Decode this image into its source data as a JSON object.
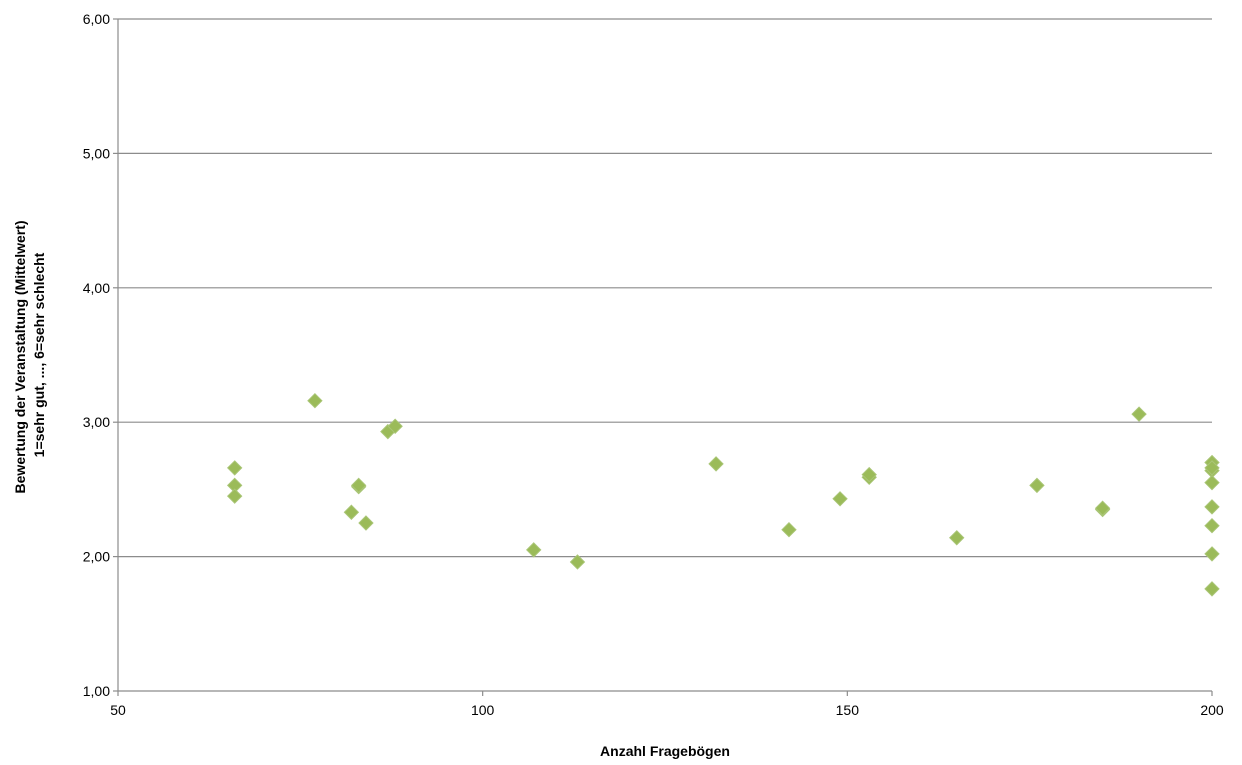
{
  "chart_data": {
    "type": "scatter",
    "title": "",
    "xlabel": "Anzahl Fragebögen",
    "ylabel_lines": [
      "Bewertung der Veranstaltung (Mittelwert)",
      "1=sehr gut, ..., 6=sehr schlecht"
    ],
    "xlim": [
      50,
      200
    ],
    "ylim": [
      1,
      6
    ],
    "x_ticks": [
      50,
      100,
      150,
      200
    ],
    "y_ticks": [
      1,
      2,
      3,
      4,
      5,
      6
    ],
    "x_tick_labels": [
      "50",
      "100",
      "150",
      "200"
    ],
    "y_tick_labels": [
      "1,00",
      "2,00",
      "3,00",
      "4,00",
      "5,00",
      "6,00"
    ],
    "grid": "horizontal",
    "legend": "none",
    "marker": "diamond",
    "series": [
      {
        "color": "#9bbb59",
        "x": [
          66,
          66,
          66,
          77,
          82,
          83,
          83,
          84,
          87,
          88,
          107,
          113,
          132,
          142,
          149,
          153,
          153,
          165,
          176,
          185,
          185,
          190,
          200,
          200,
          200,
          200,
          200,
          200,
          200,
          200
        ],
        "y": [
          2.66,
          2.53,
          2.45,
          3.16,
          2.33,
          2.52,
          2.53,
          2.25,
          2.93,
          2.97,
          2.05,
          1.96,
          2.69,
          2.2,
          2.43,
          2.59,
          2.61,
          2.14,
          2.53,
          2.35,
          2.36,
          3.06,
          2.7,
          2.64,
          2.55,
          2.37,
          2.23,
          2.02,
          1.76,
          2.66
        ]
      }
    ]
  }
}
